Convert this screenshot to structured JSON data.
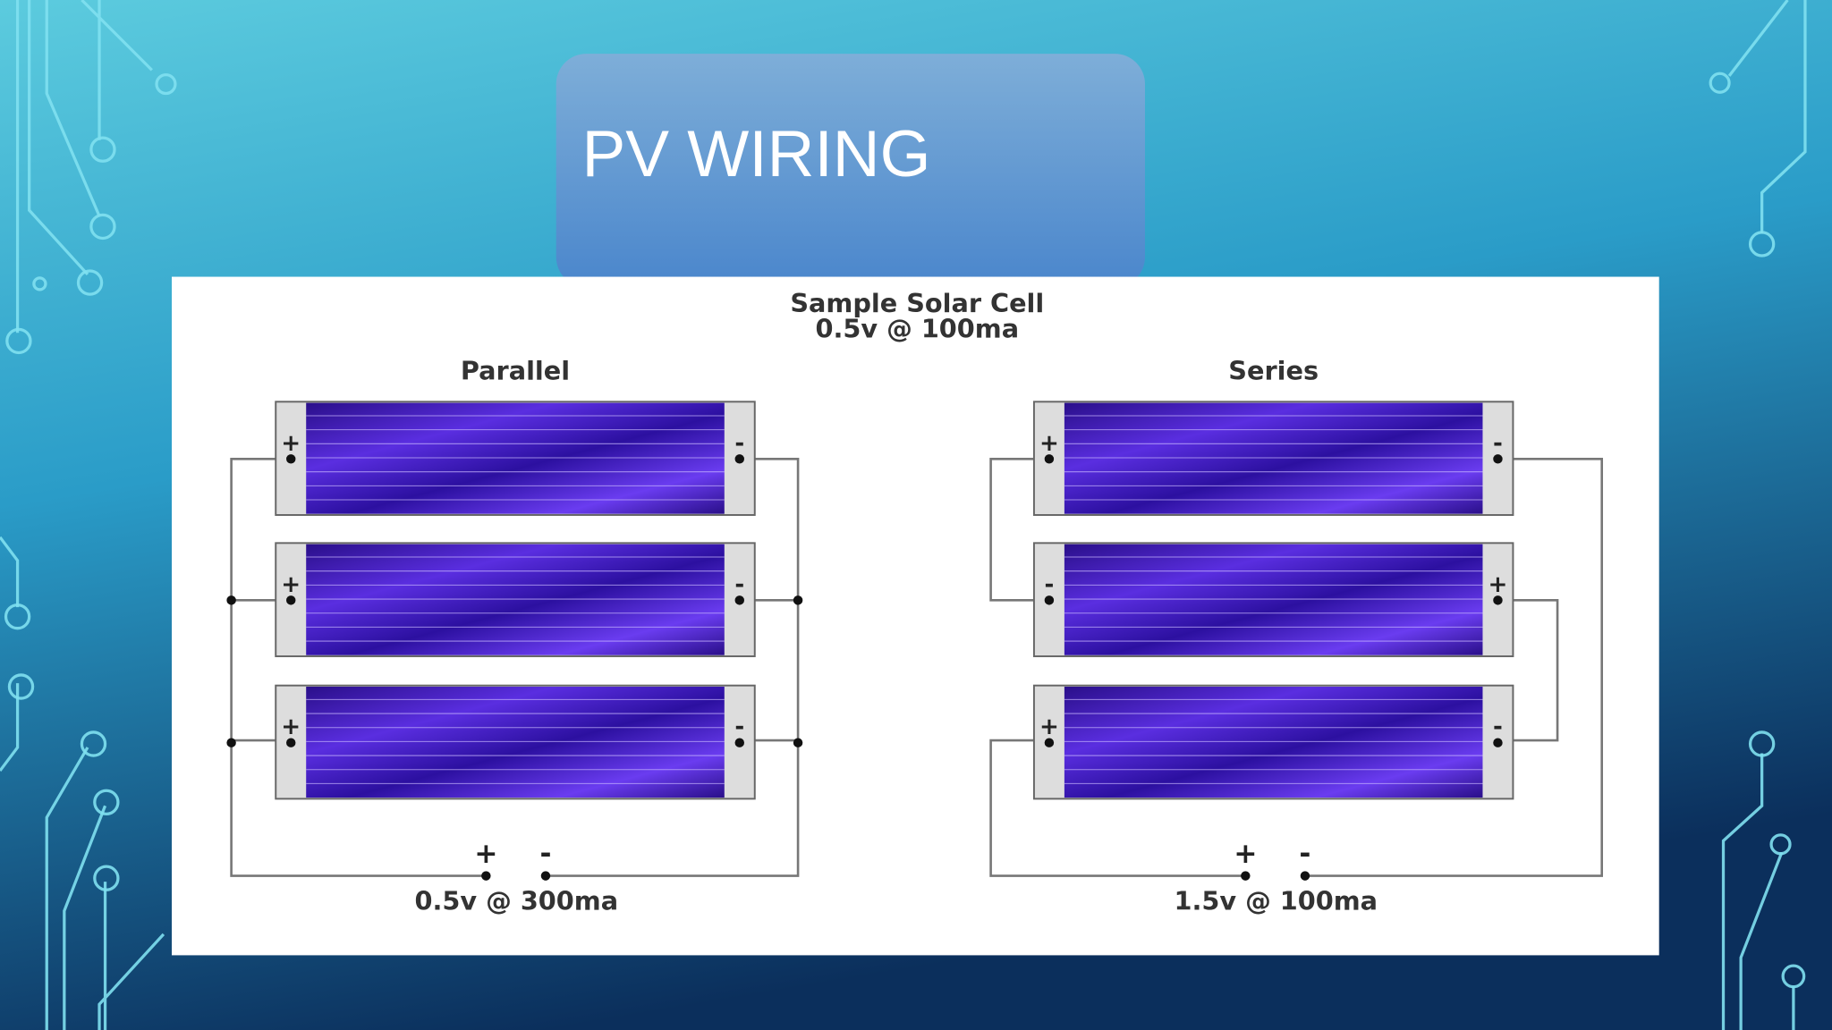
{
  "header": {
    "title": "PV WIRING"
  },
  "diagram": {
    "title": "Sample Solar Cell",
    "subtitle": "0.5v @ 100ma",
    "parallel": {
      "label": "Parallel",
      "cells": [
        {
          "left": "+",
          "right": "-"
        },
        {
          "left": "+",
          "right": "-"
        },
        {
          "left": "+",
          "right": "-"
        }
      ],
      "terminals": [
        "+",
        "-"
      ],
      "output": "0.5v @ 300ma"
    },
    "series": {
      "label": "Series",
      "cells": [
        {
          "left": "+",
          "right": "-"
        },
        {
          "left": "-",
          "right": "+"
        },
        {
          "left": "+",
          "right": "-"
        }
      ],
      "terminals": [
        "+",
        "-"
      ],
      "output": "1.5v @ 100ma"
    }
  }
}
